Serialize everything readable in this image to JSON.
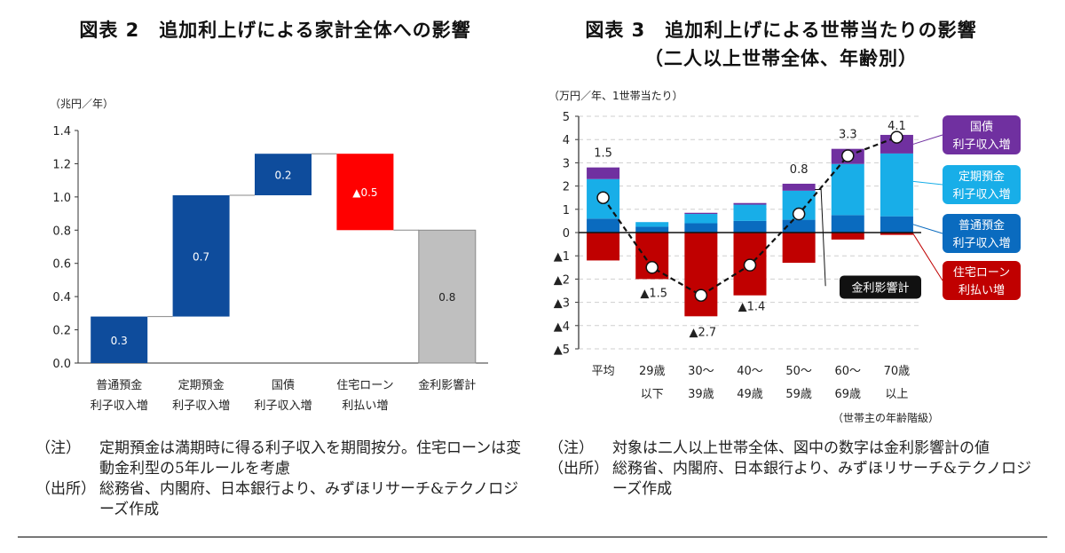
{
  "fig2": {
    "title": "図表 2　追加利上げによる家計全体への影響",
    "notes": [
      {
        "label": "（注）",
        "text": "定期預金は満期時に得る利子収入を期間按分。住宅ローンは変動金利型の5年ルールを考慮"
      },
      {
        "label": "（出所）",
        "text": "総務省、内閣府、日本銀行より、みずほリサーチ&テクノロジーズ作成"
      }
    ]
  },
  "fig3": {
    "title_line1": "図表 3　追加利上げによる世帯当たりの影響",
    "title_line2": "（二人以上世帯全体、年齢別）",
    "notes": [
      {
        "label": "（注）",
        "text": "対象は二人以上世帯全体、図中の数字は金利影響計の値"
      },
      {
        "label": "（出所）",
        "text": "総務省、内閣府、日本銀行より、みずほリサーチ&テクノロジーズ作成"
      }
    ]
  },
  "chart_data": [
    {
      "type": "bar",
      "subtype": "waterfall",
      "title": "追加利上げによる家計全体への影響",
      "ylabel": "（兆円／年）",
      "ylim": [
        0,
        1.4
      ],
      "yticks": [
        "0.0",
        "0.2",
        "0.4",
        "0.6",
        "0.8",
        "1.0",
        "1.2",
        "1.4"
      ],
      "ytick_values": [
        0,
        0.2,
        0.4,
        0.6,
        0.8,
        1.0,
        1.2,
        1.4
      ],
      "grid": false,
      "categories": [
        [
          "普通預金",
          "利子収入増"
        ],
        [
          "定期預金",
          "利子収入増"
        ],
        [
          "国債",
          "利子収入増"
        ],
        [
          "住宅ローン",
          "利払い増"
        ],
        [
          "金利影響計",
          ""
        ]
      ],
      "bars": [
        {
          "base": 0.0,
          "top": 0.28,
          "label": "0.3",
          "color": "#0e4c9c",
          "label_color": "#ffffff"
        },
        {
          "base": 0.28,
          "top": 1.01,
          "label": "0.7",
          "color": "#0e4c9c",
          "label_color": "#ffffff"
        },
        {
          "base": 1.01,
          "top": 1.26,
          "label": "0.2",
          "color": "#0e4c9c",
          "label_color": "#ffffff"
        },
        {
          "base": 0.8,
          "top": 1.26,
          "label": "▲0.5",
          "color": "#ff0000",
          "label_color": "#ffffff"
        },
        {
          "base": 0.0,
          "top": 0.8,
          "label": "0.8",
          "color": "#bfbfbf",
          "label_color": "#222222"
        }
      ],
      "values": [
        0.3,
        0.7,
        0.2,
        -0.5,
        0.8
      ]
    },
    {
      "type": "bar",
      "subtype": "stacked_with_line",
      "title": "追加利上げによる世帯当たりの影響（二人以上世帯全体、年齢別）",
      "ylabel": "（万円／年、1世帯当たり）",
      "xlabel": "（世帯主の年齢階級）",
      "ylim": [
        -5,
        5
      ],
      "yticks": [
        "▲5",
        "▲4",
        "▲3",
        "▲2",
        "▲1",
        "0",
        "1",
        "2",
        "3",
        "4",
        "5"
      ],
      "ytick_values": [
        -5,
        -4,
        -3,
        -2,
        -1,
        0,
        1,
        2,
        3,
        4,
        5
      ],
      "grid": "dashed-horizontal",
      "categories": [
        [
          "平均",
          ""
        ],
        [
          "29歳",
          "以下"
        ],
        [
          "30～",
          "39歳"
        ],
        [
          "40～",
          "49歳"
        ],
        [
          "50～",
          "59歳"
        ],
        [
          "60～",
          "69歳"
        ],
        [
          "70歳",
          "以上"
        ]
      ],
      "series": [
        {
          "name": "普通預金 利子収入増",
          "color": "#0a6bbf",
          "values": [
            0.6,
            0.25,
            0.4,
            0.5,
            0.55,
            0.75,
            0.7
          ]
        },
        {
          "name": "定期預金 利子収入増",
          "color": "#18aee8",
          "values": [
            1.7,
            0.2,
            0.4,
            0.7,
            1.25,
            2.2,
            2.7
          ]
        },
        {
          "name": "国債 利子収入増",
          "color": "#7030a0",
          "values": [
            0.5,
            0.0,
            0.05,
            0.07,
            0.3,
            0.65,
            0.8
          ]
        },
        {
          "name": "住宅ローン 利払い増",
          "color": "#c00000",
          "values": [
            -1.2,
            -2.0,
            -3.6,
            -2.7,
            -1.3,
            -0.3,
            -0.1
          ]
        }
      ],
      "line": {
        "name": "金利影響計",
        "values": [
          1.5,
          -1.5,
          -2.7,
          -1.4,
          0.8,
          3.3,
          4.1
        ],
        "labels": [
          "1.5",
          "▲1.5",
          "▲2.7",
          "▲1.4",
          "0.8",
          "3.3",
          "4.1"
        ],
        "label_position": [
          "above",
          "below",
          "below",
          "below",
          "above",
          "above",
          "above"
        ]
      },
      "legend": {
        "placement": "right",
        "items": [
          {
            "line1": "国債",
            "line2": "利子収入増",
            "color": "#7030a0"
          },
          {
            "line1": "定期預金",
            "line2": "利子収入増",
            "color": "#18aee8"
          },
          {
            "line1": "普通預金",
            "line2": "利子収入増",
            "color": "#0a6bbf"
          },
          {
            "line1": "住宅ローン",
            "line2": "利払い増",
            "color": "#c00000"
          }
        ],
        "line_callout": "金利影響計"
      }
    }
  ]
}
